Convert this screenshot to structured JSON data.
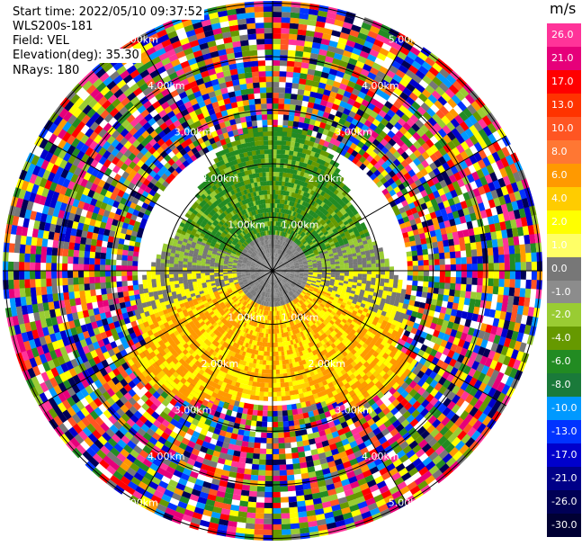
{
  "info": {
    "start_time": "Start time: 2022/05/10 09:37:52",
    "instrument": "WLS200s-181",
    "field": "Field: VEL",
    "elevation": "Elevation(deg): 35.30",
    "nrays": "NRays: 180"
  },
  "rings": {
    "labels": [
      "1.00km",
      "2.00km",
      "3.00km",
      "4.00km",
      "5.00km"
    ],
    "km": [
      1,
      2,
      3,
      4,
      5
    ]
  },
  "colorbar": {
    "unit": "m/s",
    "ticks": [
      "26.0",
      "21.0",
      "17.0",
      "13.0",
      "10.0",
      "8.0",
      "6.0",
      "4.0",
      "2.0",
      "1.0",
      "0.0",
      "-1.0",
      "-2.0",
      "-4.0",
      "-6.0",
      "-8.0",
      "-10.0",
      "-13.0",
      "-17.0",
      "-21.0",
      "-26.0",
      "-30.0"
    ],
    "colors": [
      "#ff3399",
      "#e6007a",
      "#ff0000",
      "#ff3300",
      "#ff5522",
      "#ff7733",
      "#ff9900",
      "#ffcc00",
      "#ffff00",
      "#ffff66",
      "#777777",
      "#8c8c8c",
      "#99cc33",
      "#669900",
      "#228b22",
      "#1a7a3a",
      "#0099ff",
      "#0033ff",
      "#0000cc",
      "#000088",
      "#000055",
      "#000033"
    ]
  }
}
